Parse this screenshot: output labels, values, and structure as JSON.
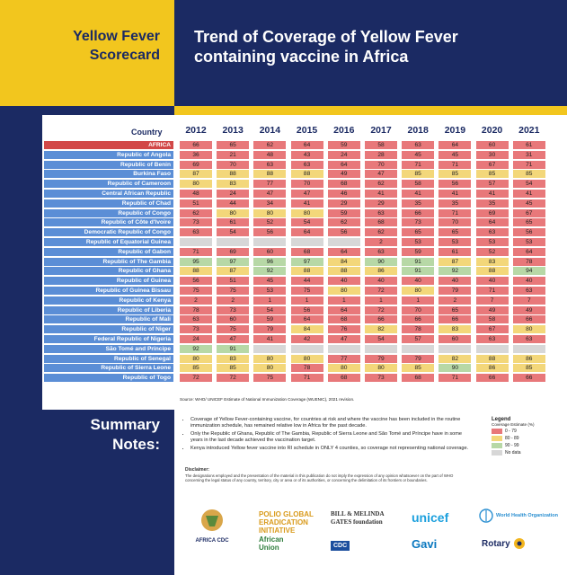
{
  "header": {
    "scorecard_title": "Yellow Fever Scorecard",
    "chart_title": "Trend of Coverage of Yellow Fever containing vaccine in Africa"
  },
  "colors": {
    "navy": "#1b2a63",
    "yellow": "#f2c61e",
    "red": "#e8787a",
    "amber": "#f3d77a",
    "green": "#b7d8a6",
    "grey": "#d7d7d7",
    "label_blue": "#5b8ed6"
  },
  "chart_data": {
    "type": "heatmap",
    "title": "Trend of Coverage of Yellow Fever containing vaccine in Africa",
    "row_header": "Country",
    "years": [
      "2012",
      "2013",
      "2014",
      "2015",
      "2016",
      "2017",
      "2018",
      "2019",
      "2020",
      "2021"
    ],
    "rows": [
      {
        "name": "AFRICA",
        "values": [
          66,
          65,
          62,
          64,
          59,
          58,
          63,
          64,
          60,
          61
        ]
      },
      {
        "name": "Republic of Angola",
        "values": [
          36,
          21,
          48,
          43,
          24,
          28,
          45,
          45,
          30,
          31
        ]
      },
      {
        "name": "Republic of Benin",
        "values": [
          69,
          70,
          63,
          63,
          64,
          70,
          71,
          71,
          67,
          71
        ]
      },
      {
        "name": "Burkina Faso",
        "values": [
          87,
          88,
          88,
          88,
          49,
          47,
          85,
          85,
          85,
          85
        ]
      },
      {
        "name": "Republic of Cameroon",
        "values": [
          80,
          83,
          77,
          70,
          68,
          62,
          58,
          56,
          57,
          54
        ]
      },
      {
        "name": "Central African Republic",
        "values": [
          48,
          24,
          47,
          47,
          46,
          41,
          41,
          41,
          41,
          41
        ]
      },
      {
        "name": "Republic of Chad",
        "values": [
          51,
          44,
          34,
          41,
          29,
          29,
          35,
          35,
          35,
          45
        ]
      },
      {
        "name": "Republic of Congo",
        "values": [
          62,
          80,
          80,
          80,
          59,
          63,
          66,
          71,
          69,
          67
        ]
      },
      {
        "name": "Republic of Côte d'Ivoire",
        "values": [
          73,
          61,
          52,
          54,
          62,
          68,
          73,
          70,
          64,
          65
        ]
      },
      {
        "name": "Democratic Republic of Congo",
        "values": [
          63,
          54,
          56,
          64,
          56,
          62,
          65,
          65,
          63,
          56
        ]
      },
      {
        "name": "Republic of Equatorial Guinea",
        "values": [
          null,
          null,
          null,
          null,
          null,
          2,
          53,
          53,
          53,
          53
        ]
      },
      {
        "name": "Republic of Gabon",
        "values": [
          71,
          69,
          60,
          68,
          64,
          63,
          59,
          61,
          52,
          64
        ]
      },
      {
        "name": "Republic of The Gambia",
        "values": [
          95,
          97,
          96,
          97,
          84,
          90,
          91,
          87,
          83,
          78
        ]
      },
      {
        "name": "Republic of Ghana",
        "values": [
          88,
          87,
          92,
          88,
          88,
          86,
          91,
          92,
          88,
          94
        ]
      },
      {
        "name": "Republic of Guinea",
        "values": [
          56,
          51,
          45,
          44,
          40,
          40,
          40,
          40,
          40,
          40
        ]
      },
      {
        "name": "Republic of Guinea Bissau",
        "values": [
          75,
          75,
          53,
          75,
          80,
          72,
          80,
          79,
          71,
          63
        ]
      },
      {
        "name": "Republic of Kenya",
        "values": [
          2,
          2,
          1,
          1,
          1,
          1,
          1,
          2,
          7,
          7
        ]
      },
      {
        "name": "Republic of Liberia",
        "values": [
          78,
          73,
          54,
          56,
          64,
          72,
          70,
          65,
          49,
          49
        ]
      },
      {
        "name": "Republic of Mali",
        "values": [
          63,
          60,
          59,
          64,
          68,
          66,
          66,
          66,
          58,
          66
        ]
      },
      {
        "name": "Republic of Niger",
        "values": [
          73,
          75,
          79,
          84,
          76,
          82,
          78,
          83,
          67,
          80
        ]
      },
      {
        "name": "Federal Republic of Nigeria",
        "values": [
          24,
          47,
          41,
          42,
          47,
          54,
          57,
          60,
          63,
          63
        ]
      },
      {
        "name": "São Tomé and Príncipe",
        "values": [
          92,
          91,
          null,
          null,
          null,
          null,
          null,
          null,
          null,
          null
        ]
      },
      {
        "name": "Republic of Senegal",
        "values": [
          80,
          83,
          80,
          80,
          77,
          79,
          79,
          82,
          88,
          86
        ]
      },
      {
        "name": "Republic of Sierra Leone",
        "values": [
          85,
          85,
          80,
          78,
          80,
          80,
          85,
          90,
          86,
          85
        ]
      },
      {
        "name": "Republic of Togo",
        "values": [
          72,
          72,
          75,
          71,
          68,
          73,
          68,
          71,
          66,
          66
        ]
      }
    ],
    "legend": {
      "title": "Legend",
      "subtitle": "Coverage Estimate (%)",
      "items": [
        {
          "label": "0 - 79",
          "color": "#e8787a"
        },
        {
          "label": "80 - 89",
          "color": "#f3d77a"
        },
        {
          "label": "90 - 99",
          "color": "#b7d8a6"
        },
        {
          "label": "No data",
          "color": "#d7d7d7"
        }
      ]
    },
    "source": "Source: WHO/ UNICEF Estimate of National Immunization Coverage (WUENIC), 2021 revision."
  },
  "summary": {
    "title": "Summary Notes:",
    "notes": [
      "Coverage of Yellow Fever-containing vaccine, for countries at risk and where the vaccine has been included in the routine immunization schedule, has remained relative low in Africa for the past decade.",
      "Only the Republic of Ghana, Republic of The Gambia, Republic of Sierra Leone and São Tomé and Príncipe have in some years in the last decade achieved the vaccination target.",
      "Kenya introduced Yellow fever vaccine into RI schedule in ONLY 4 counties, so coverage not representing national coverage."
    ]
  },
  "disclaimer": {
    "title": "Disclaimer:",
    "text": "The designations employed and the presentation of the material in this publication do not imply the expression of any opinion whatsoever on the part of WHO concerning the legal status of any country, territory, city or area or of its authorities, or concerning the delimitation of its frontiers or boundaries."
  },
  "logos": [
    "AFRICA CDC",
    "POLIO GLOBAL ERADICATION INITIATIVE",
    "BILL & MELINDA GATES foundation",
    "unicef",
    "World Health Organization",
    "African Union",
    "CDC",
    "Gavi",
    "Rotary"
  ]
}
